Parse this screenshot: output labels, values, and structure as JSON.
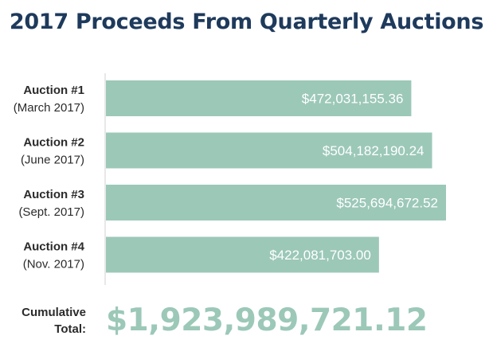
{
  "title": "2017 Proceeds From Quarterly Auctions",
  "chart_data": {
    "type": "bar",
    "orientation": "horizontal",
    "title": "2017 Proceeds From Quarterly Auctions",
    "categories": [
      {
        "name": "Auction #1",
        "sub": "(March 2017)"
      },
      {
        "name": "Auction #2",
        "sub": "(June 2017)"
      },
      {
        "name": "Auction #3",
        "sub": "(Sept. 2017)"
      },
      {
        "name": "Auction #4",
        "sub": "(Nov. 2017)"
      }
    ],
    "values": [
      472031155.36,
      504182190.24,
      525694672.52,
      422081703.0
    ],
    "value_labels": [
      "$472,031,155.36",
      "$504,182,190.24",
      "$525,694,672.52",
      "$422,081,703.00"
    ],
    "bar_color": "#9cc8b8",
    "xlim": [
      0,
      525694672.52
    ],
    "grid": false,
    "legend": "none"
  },
  "total": {
    "label_line1": "Cumulative",
    "label_line2": "Total:",
    "value": "$1,923,989,721.12"
  },
  "colors": {
    "title": "#1e3a5c",
    "bar": "#9cc8b8",
    "total_value": "#9cc8b8",
    "axis_line": "#d0d0d0",
    "text": "#2b2b2b"
  }
}
